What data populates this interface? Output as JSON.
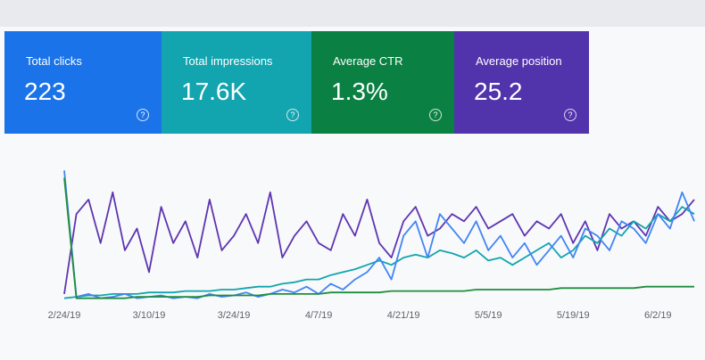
{
  "cards": [
    {
      "label": "Total clicks",
      "value": "223"
    },
    {
      "label": "Total impressions",
      "value": "17.6K"
    },
    {
      "label": "Average CTR",
      "value": "1.3%"
    },
    {
      "label": "Average position",
      "value": "25.2"
    }
  ],
  "help_label": "?",
  "chart_data": {
    "type": "line",
    "categories": [
      "2/24/19",
      null,
      null,
      null,
      null,
      null,
      null,
      "3/10/19",
      null,
      null,
      null,
      null,
      null,
      null,
      "3/24/19",
      null,
      null,
      null,
      null,
      null,
      null,
      "4/7/19",
      null,
      null,
      null,
      null,
      null,
      null,
      "4/21/19",
      null,
      null,
      null,
      null,
      null,
      null,
      "5/5/19",
      null,
      null,
      null,
      null,
      null,
      null,
      "5/19/19",
      null,
      null,
      null,
      null,
      null,
      null,
      "6/2/19",
      null,
      null,
      null
    ],
    "ylim": [
      0,
      100
    ],
    "series": [
      {
        "name": "Total impressions",
        "color": "#5e35b1",
        "values": [
          5,
          60,
          70,
          40,
          75,
          35,
          50,
          20,
          65,
          40,
          55,
          30,
          70,
          35,
          45,
          60,
          40,
          75,
          30,
          45,
          55,
          40,
          35,
          60,
          45,
          70,
          40,
          30,
          55,
          65,
          45,
          50,
          60,
          55,
          65,
          50,
          55,
          60,
          45,
          55,
          50,
          60,
          40,
          55,
          35,
          60,
          50,
          55,
          45,
          65,
          55,
          60,
          70
        ]
      },
      {
        "name": "Average CTR",
        "color": "#12a4af",
        "values": [
          2,
          3,
          4,
          4,
          5,
          5,
          5,
          6,
          6,
          6,
          7,
          7,
          7,
          8,
          8,
          9,
          10,
          10,
          12,
          13,
          15,
          15,
          18,
          20,
          22,
          25,
          28,
          25,
          30,
          32,
          30,
          35,
          33,
          30,
          35,
          28,
          30,
          25,
          30,
          35,
          40,
          30,
          35,
          45,
          40,
          50,
          45,
          55,
          50,
          60,
          55,
          65,
          60
        ]
      },
      {
        "name": "Total clicks",
        "color": "#4285f4",
        "values": [
          90,
          3,
          5,
          2,
          3,
          5,
          2,
          3,
          4,
          2,
          3,
          2,
          5,
          3,
          4,
          6,
          3,
          5,
          8,
          6,
          10,
          5,
          12,
          8,
          15,
          20,
          30,
          15,
          45,
          55,
          30,
          60,
          50,
          40,
          55,
          35,
          45,
          30,
          40,
          25,
          35,
          45,
          30,
          50,
          45,
          35,
          55,
          50,
          40,
          60,
          50,
          75,
          55
        ]
      },
      {
        "name": "Average position",
        "color": "#1e8e3e",
        "values": [
          85,
          2,
          2,
          2,
          2,
          2,
          3,
          3,
          3,
          3,
          3,
          3,
          4,
          4,
          4,
          4,
          4,
          5,
          5,
          5,
          5,
          5,
          6,
          6,
          6,
          6,
          6,
          7,
          7,
          7,
          7,
          7,
          7,
          7,
          8,
          8,
          8,
          8,
          8,
          8,
          8,
          9,
          9,
          9,
          9,
          9,
          9,
          9,
          10,
          10,
          10,
          10,
          10
        ]
      }
    ]
  }
}
